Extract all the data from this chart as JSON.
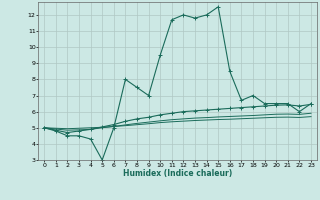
{
  "xlabel": "Humidex (Indice chaleur)",
  "background_color": "#cce8e4",
  "grid_color": "#b0c8c4",
  "line_color": "#1a6b5a",
  "xlim": [
    -0.5,
    23.5
  ],
  "ylim": [
    3,
    12.8
  ],
  "yticks": [
    3,
    4,
    5,
    6,
    7,
    8,
    9,
    10,
    11,
    12
  ],
  "xticks": [
    0,
    1,
    2,
    3,
    4,
    5,
    6,
    7,
    8,
    9,
    10,
    11,
    12,
    13,
    14,
    15,
    16,
    17,
    18,
    19,
    20,
    21,
    22,
    23
  ],
  "series1_x": [
    0,
    1,
    2,
    3,
    4,
    5,
    6,
    7,
    8,
    9,
    10,
    11,
    12,
    13,
    14,
    15,
    16,
    17,
    18,
    19,
    20,
    21,
    22,
    23
  ],
  "series1_y": [
    5.0,
    4.8,
    4.5,
    4.5,
    4.3,
    3.0,
    5.0,
    8.0,
    7.5,
    7.0,
    9.5,
    11.7,
    12.0,
    11.8,
    12.0,
    12.5,
    8.5,
    6.7,
    7.0,
    6.5,
    6.5,
    6.5,
    6.0,
    6.5
  ],
  "series2_x": [
    0,
    1,
    2,
    3,
    4,
    5,
    6,
    7,
    8,
    9,
    10,
    11,
    12,
    13,
    14,
    15,
    16,
    17,
    18,
    19,
    20,
    21,
    22,
    23
  ],
  "series2_y": [
    5.0,
    4.85,
    4.7,
    4.8,
    4.9,
    5.05,
    5.2,
    5.4,
    5.55,
    5.65,
    5.8,
    5.9,
    6.0,
    6.05,
    6.1,
    6.15,
    6.2,
    6.25,
    6.3,
    6.35,
    6.4,
    6.42,
    6.35,
    6.45
  ],
  "series3_x": [
    0,
    1,
    2,
    3,
    4,
    5,
    6,
    7,
    8,
    9,
    10,
    11,
    12,
    13,
    14,
    15,
    16,
    17,
    18,
    19,
    20,
    21,
    22,
    23
  ],
  "series3_y": [
    5.0,
    4.92,
    4.85,
    4.87,
    4.9,
    5.0,
    5.08,
    5.18,
    5.27,
    5.35,
    5.43,
    5.5,
    5.55,
    5.6,
    5.63,
    5.67,
    5.7,
    5.73,
    5.76,
    5.8,
    5.84,
    5.85,
    5.83,
    5.9
  ],
  "series4_x": [
    0,
    1,
    2,
    3,
    4,
    5,
    6,
    7,
    8,
    9,
    10,
    11,
    12,
    13,
    14,
    15,
    16,
    17,
    18,
    19,
    20,
    21,
    22,
    23
  ],
  "series4_y": [
    5.0,
    4.97,
    4.94,
    4.97,
    5.0,
    5.03,
    5.08,
    5.13,
    5.19,
    5.25,
    5.32,
    5.37,
    5.41,
    5.45,
    5.48,
    5.51,
    5.53,
    5.56,
    5.59,
    5.62,
    5.65,
    5.66,
    5.64,
    5.69
  ]
}
